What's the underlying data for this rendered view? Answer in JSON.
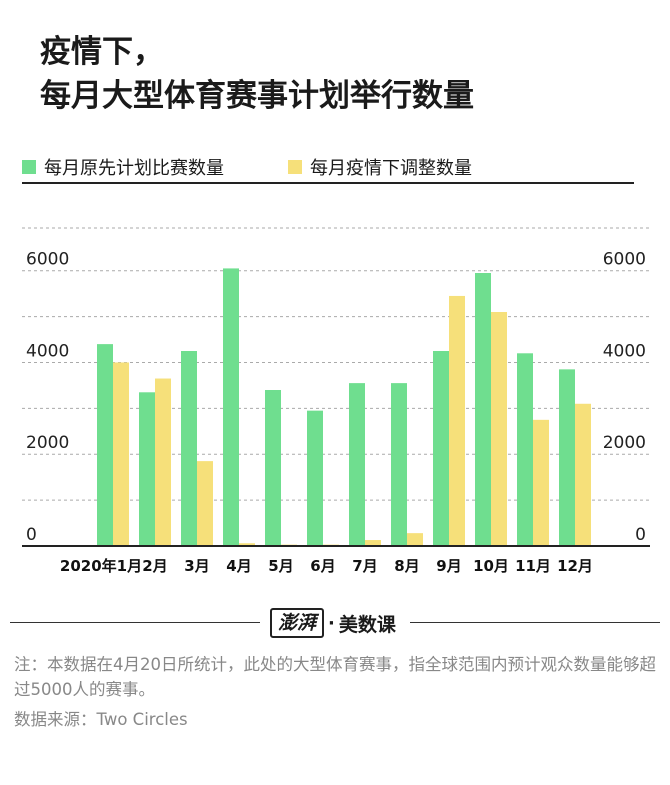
{
  "title_line1": "疫情下，",
  "title_line2": "每月大型体育赛事计划举行数量",
  "logo": {
    "brand": "澎湃",
    "dot": "·",
    "sub": "美数课"
  },
  "note": "注：本数据在4月20日所统计，此处的大型体育赛事，指全球范围内预计观众数量能够超过5000人的赛事。",
  "source": "数据来源：Two Circles",
  "colors": {
    "planned": "#6fde8f",
    "adjusted": "#f6e07a",
    "grid": "#aaaaaa",
    "axis": "#222222"
  },
  "chart_data": {
    "type": "bar",
    "categories": [
      "2020年1月",
      "2月",
      "3月",
      "4月",
      "5月",
      "6月",
      "7月",
      "8月",
      "9月",
      "10月",
      "11月",
      "12月"
    ],
    "series": [
      {
        "name": "每月原先计划比赛数量",
        "values": [
          4400,
          3350,
          4250,
          6050,
          3400,
          2950,
          3550,
          3550,
          4250,
          5950,
          4200,
          3850
        ]
      },
      {
        "name": "每月疫情下调整数量",
        "values": [
          4000,
          3650,
          1850,
          60,
          30,
          30,
          130,
          280,
          5450,
          5100,
          2750,
          3100
        ]
      }
    ],
    "yticks": [
      0,
      2000,
      4000,
      6000
    ],
    "ylim": [
      0,
      6800
    ],
    "grid": true,
    "legend_position": "top"
  }
}
